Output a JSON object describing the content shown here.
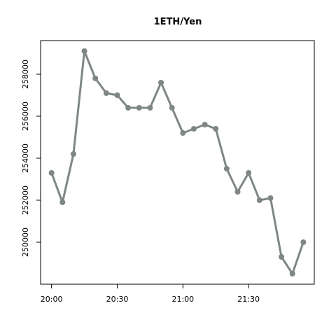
{
  "chart_data": {
    "type": "line",
    "title": "1ETH/Yen",
    "xlabel": "",
    "ylabel": "",
    "x_ticks": [
      "20:00",
      "20:30",
      "21:00",
      "21:30"
    ],
    "y_ticks": [
      250000,
      252000,
      254000,
      256000,
      258000
    ],
    "x_tick_minutes": [
      0,
      30,
      60,
      90
    ],
    "xlim_minutes": [
      -5,
      120
    ],
    "ylim": [
      248000,
      259600
    ],
    "grid": false,
    "legend": "none",
    "series": [
      {
        "color": "#7f8784",
        "x": [
          "20:00",
          "20:05",
          "20:10",
          "20:15",
          "20:20",
          "20:25",
          "20:30",
          "20:35",
          "20:40",
          "20:45",
          "20:50",
          "20:55",
          "21:00",
          "21:05",
          "21:10",
          "21:15",
          "21:20",
          "21:25",
          "21:30",
          "21:35",
          "21:40",
          "21:45",
          "21:50",
          "21:55"
        ],
        "values": [
          253300,
          251900,
          254200,
          259100,
          257800,
          257100,
          257000,
          256400,
          256400,
          256400,
          257600,
          256400,
          255200,
          255400,
          255600,
          255400,
          253500,
          252400,
          253300,
          252000,
          252100,
          249300,
          248500,
          250000
        ]
      }
    ]
  }
}
